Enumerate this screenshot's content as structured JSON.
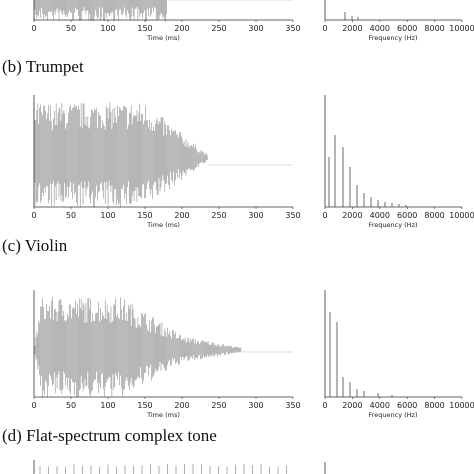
{
  "time_axis": {
    "title": "Time (ms)",
    "ticks": [
      0,
      50,
      100,
      150,
      200,
      250,
      300,
      350
    ]
  },
  "frequency_axis": {
    "title": "Frequency (Hz)",
    "ticks": [
      0,
      2000,
      4000,
      6000,
      8000,
      10000
    ]
  },
  "panel_labels": [
    "(b) Trumpet",
    "(c) Violin",
    "(d) Flat-spectrum complex tone"
  ]
}
